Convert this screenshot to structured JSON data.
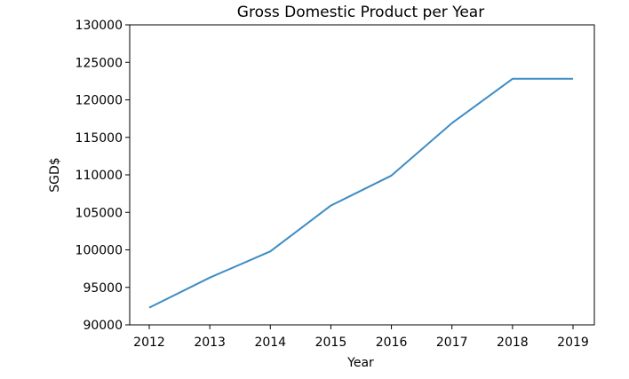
{
  "chart_data": {
    "type": "line",
    "title": "Gross Domestic Product per Year",
    "xlabel": "Year",
    "ylabel": "SGD$",
    "x": [
      2012,
      2013,
      2014,
      2015,
      2016,
      2017,
      2018,
      2019
    ],
    "series": [
      {
        "values": [
          92300,
          96300,
          99800,
          105900,
          109900,
          116900,
          122800,
          122800
        ]
      }
    ],
    "ylim": [
      90000,
      130000
    ],
    "yticks": [
      90000,
      95000,
      100000,
      105000,
      110000,
      115000,
      120000,
      125000,
      130000
    ],
    "grid": false,
    "legend": "none",
    "colors": {
      "line": "#3d8cc4",
      "axes": "#000000"
    }
  }
}
